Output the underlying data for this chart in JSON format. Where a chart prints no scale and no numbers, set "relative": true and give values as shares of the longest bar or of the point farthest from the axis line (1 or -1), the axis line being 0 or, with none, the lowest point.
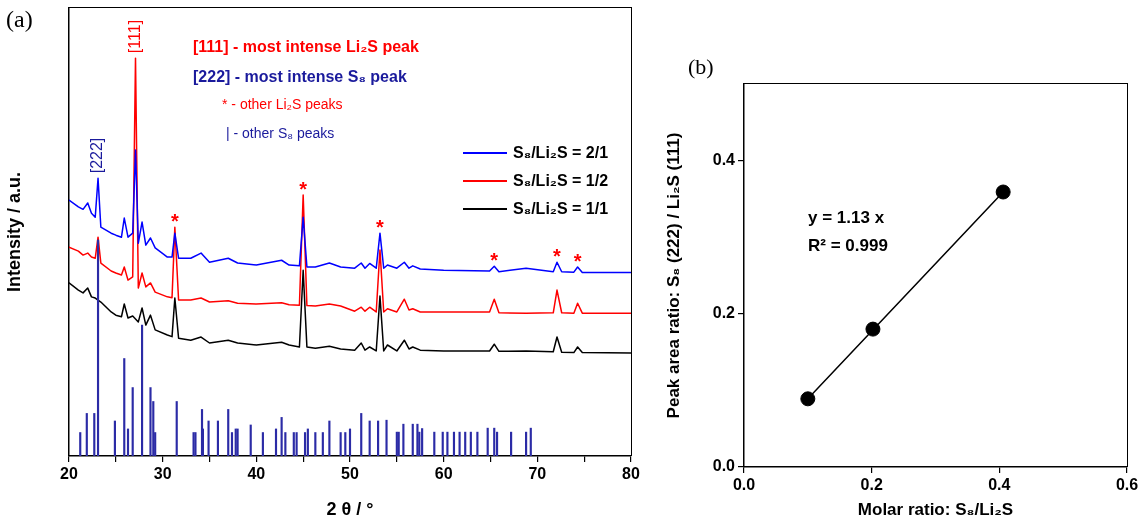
{
  "chart_data": [
    {
      "type": "line",
      "xlabel": "2 θ / °",
      "ylabel": "Intensity / a.u.",
      "relative": true,
      "xlim": [
        20,
        80
      ],
      "xticks": [
        20,
        {
          "value": 25,
          "label": null
        },
        30,
        {
          "value": 35,
          "label": null
        },
        40,
        {
          "value": 45,
          "label": null
        },
        50,
        {
          "value": 55,
          "label": null
        },
        60,
        {
          "value": 65,
          "label": null
        },
        70,
        {
          "value": 75,
          "label": null
        },
        80
      ],
      "grid": false,
      "legend": "right",
      "annotations": [
        "(a)",
        "[111] - most intense Li₂S peak",
        "[222] - most intense S₈ peak",
        "* - other Li₂S peaks",
        "| - other S₈ peaks",
        {
          "text": "[111]",
          "x": 27.1,
          "y": 1.0
        },
        {
          "text": "[222]",
          "x": 23.1,
          "y": 0.698
        },
        {
          "text": "*",
          "x": 31.3,
          "y": 0.575
        },
        {
          "text": "*",
          "x": 45.0,
          "y": 0.656
        },
        {
          "text": "*",
          "x": 53.2,
          "y": 0.56
        },
        {
          "text": "*",
          "x": 65.4,
          "y": 0.477
        },
        {
          "text": "*",
          "x": 72.1,
          "y": 0.487
        },
        {
          "text": "*",
          "x": 74.3,
          "y": 0.475
        }
      ],
      "x": [
        20,
        21,
        21.5,
        22.0,
        22.4,
        22.8,
        23.1,
        23.4,
        24.5,
        25.0,
        25.6,
        25.9,
        26.3,
        26.8,
        27.1,
        27.4,
        27.8,
        28.2,
        28.7,
        29.2,
        30.5,
        31.0,
        31.3,
        31.7,
        33,
        34.1,
        35,
        37,
        38,
        40,
        42.7,
        43.5,
        44.6,
        45.0,
        45.4,
        46.3,
        47.8,
        49,
        50.5,
        51.2,
        51.6,
        52.1,
        52.8,
        53.2,
        53.6,
        54.0,
        55,
        55.8,
        56.3,
        56.7,
        57.5,
        60,
        64.9,
        65.4,
        65.9,
        68.8,
        71.7,
        72.1,
        72.6,
        73.9,
        74.3,
        74.8,
        80
      ],
      "series": [
        {
          "name": "S₈/Li₂S = 2/1",
          "color": "#0000ff",
          "values": [
            0.643,
            0.626,
            0.62,
            0.636,
            0.61,
            0.6,
            0.698,
            0.575,
            0.56,
            0.555,
            0.55,
            0.598,
            0.55,
            0.56,
            0.769,
            0.535,
            0.588,
            0.53,
            0.548,
            0.523,
            0.5,
            0.5,
            0.56,
            0.497,
            0.497,
            0.51,
            0.487,
            0.497,
            0.485,
            0.48,
            0.492,
            0.48,
            0.478,
            0.6,
            0.475,
            0.475,
            0.485,
            0.475,
            0.472,
            0.485,
            0.472,
            0.484,
            0.472,
            0.56,
            0.472,
            0.48,
            0.472,
            0.487,
            0.472,
            0.478,
            0.47,
            0.467,
            0.465,
            0.477,
            0.463,
            0.472,
            0.463,
            0.487,
            0.463,
            0.462,
            0.475,
            0.461,
            0.461
          ]
        },
        {
          "name": "S₈/Li₂S = 1/2",
          "color": "#ff0000",
          "values": [
            0.525,
            0.515,
            0.505,
            0.51,
            0.5,
            0.497,
            0.55,
            0.485,
            0.465,
            0.46,
            0.455,
            0.475,
            0.442,
            0.45,
            1.0,
            0.422,
            0.46,
            0.425,
            0.435,
            0.412,
            0.4,
            0.398,
            0.575,
            0.392,
            0.392,
            0.397,
            0.387,
            0.39,
            0.384,
            0.382,
            0.385,
            0.38,
            0.379,
            0.656,
            0.378,
            0.377,
            0.382,
            0.377,
            0.364,
            0.374,
            0.364,
            0.374,
            0.362,
            0.518,
            0.362,
            0.37,
            0.362,
            0.394,
            0.367,
            0.37,
            0.362,
            0.362,
            0.362,
            0.394,
            0.36,
            0.359,
            0.36,
            0.417,
            0.36,
            0.359,
            0.384,
            0.359,
            0.359
          ]
        },
        {
          "name": "S₈/Li₂S = 1/1",
          "color": "#000000",
          "values": [
            0.435,
            0.417,
            0.41,
            0.422,
            0.4,
            0.397,
            null,
            0.387,
            0.362,
            0.354,
            0.35,
            0.382,
            0.347,
            0.352,
            null,
            0.337,
            0.372,
            0.329,
            0.354,
            0.317,
            0.304,
            0.3,
            0.397,
            0.296,
            0.291,
            0.299,
            0.284,
            0.291,
            0.284,
            0.279,
            0.286,
            0.279,
            0.274,
            0.467,
            0.274,
            0.271,
            0.276,
            0.269,
            0.266,
            0.284,
            0.266,
            0.274,
            0.264,
            0.402,
            0.264,
            0.279,
            0.264,
            0.291,
            0.269,
            0.274,
            0.266,
            0.264,
            0.264,
            0.281,
            0.263,
            0.264,
            0.262,
            0.299,
            0.261,
            0.26,
            0.274,
            0.26,
            0.259
          ]
        },
        {
          "type": "bar",
          "color": "#2b2ba6",
          "x": [
            21.2,
            21.9,
            22.7,
            23.1,
            24.9,
            25.9,
            26.3,
            26.8,
            27.8,
            28.7,
            29.0,
            29.2,
            31.5,
            33.3,
            33.5,
            34.2,
            34.3,
            34.9,
            35.9,
            37.0,
            37.4,
            37.8,
            38.0,
            39.4,
            40.7,
            42.1,
            42.7,
            43.1,
            44.0,
            44.3,
            45.2,
            45.5,
            46.3,
            47.1,
            47.8,
            49.0,
            49.5,
            50.0,
            51.2,
            52.1,
            53.0,
            53.9,
            55.0,
            55.2,
            55.7,
            56.7,
            57.2,
            57.4,
            57.7,
            59.0,
            59.9,
            60.4,
            61.1,
            61.7,
            62.3,
            62.9,
            63.6,
            64.7,
            65.4,
            65.7,
            67.2,
            68.8,
            69.3
          ],
          "values": [
            0.059,
            0.107,
            0.107,
            0.543,
            0.088,
            0.245,
            0.068,
            0.172,
            0.329,
            0.172,
            0.137,
            0.059,
            0.137,
            0.059,
            0.059,
            0.117,
            0.068,
            0.088,
            0.088,
            0.117,
            0.059,
            0.068,
            0.068,
            0.078,
            0.059,
            0.068,
            0.097,
            0.059,
            0.059,
            0.059,
            0.059,
            0.068,
            0.059,
            0.059,
            0.088,
            0.059,
            0.059,
            0.068,
            0.107,
            0.088,
            0.088,
            0.09,
            0.06,
            0.06,
            0.08,
            0.08,
            0.08,
            0.06,
            0.069,
            0.06,
            0.06,
            0.06,
            0.06,
            0.06,
            0.06,
            0.06,
            0.06,
            0.07,
            0.07,
            0.06,
            0.06,
            0.06,
            0.07
          ]
        }
      ]
    },
    {
      "type": "scatter",
      "xlabel": "Molar ratio: S₈/Li₂S",
      "ylabel": "Peak area ratio: S₈ (222) / Li₂S (111)",
      "xlim": [
        0,
        0.6
      ],
      "xticks": [
        {
          "value": 0,
          "label": "0.0"
        },
        0.2,
        0.4,
        0.6
      ],
      "ylim": [
        0,
        0.5
      ],
      "yticks": [
        {
          "value": 0,
          "label": "0.0"
        },
        0.2,
        0.4
      ],
      "grid": false,
      "marker": "circle",
      "annotations": [
        "(b)",
        "y = 1.13 x",
        "R² = 0.999"
      ],
      "series": [
        {
          "color": "#000000",
          "x": [
            0.1,
            0.202,
            0.406
          ],
          "values": [
            0.089,
            0.18,
            0.359
          ]
        },
        {
          "type": "line",
          "color": "#000000",
          "marker": "none",
          "x": [
            0.1,
            0.406
          ],
          "values": [
            0.089,
            0.359
          ]
        }
      ]
    }
  ]
}
